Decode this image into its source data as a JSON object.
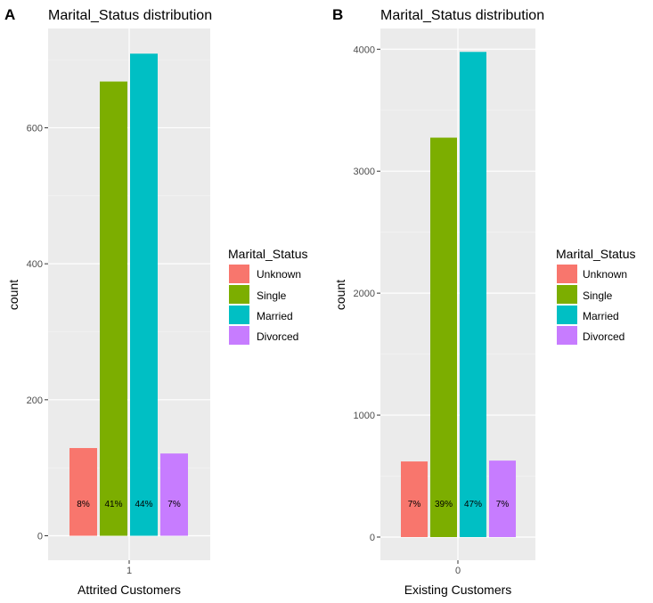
{
  "chart_data": [
    {
      "type": "bar",
      "panel_tag": "A",
      "title": "Marital_Status distribution",
      "xlabel": "Attrited Customers",
      "ylabel": "count",
      "x_tick": "1",
      "categories": [
        "Unknown",
        "Single",
        "Married",
        "Divorced"
      ],
      "values": [
        129,
        668,
        709,
        121
      ],
      "data_labels": [
        "8%",
        "41%",
        "44%",
        "7%"
      ],
      "yticks": [
        0,
        200,
        400,
        600
      ],
      "ytick_labels": [
        "0",
        "200",
        "400",
        "600"
      ],
      "ylim": [
        -36,
        746
      ],
      "grid": true,
      "legend": {
        "title": "Marital_Status",
        "position": "right",
        "entries": [
          "Unknown",
          "Single",
          "Married",
          "Divorced"
        ]
      }
    },
    {
      "type": "bar",
      "panel_tag": "B",
      "title": "Marital_Status distribution",
      "xlabel": "Existing Customers",
      "ylabel": "count",
      "x_tick": "0",
      "categories": [
        "Unknown",
        "Single",
        "Married",
        "Divorced"
      ],
      "values": [
        620,
        3275,
        3978,
        627
      ],
      "data_labels": [
        "7%",
        "39%",
        "47%",
        "7%"
      ],
      "yticks": [
        0,
        1000,
        2000,
        3000,
        4000
      ],
      "ytick_labels": [
        "0",
        "1000",
        "2000",
        "3000",
        "4000"
      ],
      "ylim": [
        -190,
        4170
      ],
      "grid": true,
      "legend": {
        "title": "Marital_Status",
        "position": "right",
        "entries": [
          "Unknown",
          "Single",
          "Married",
          "Divorced"
        ]
      }
    }
  ],
  "colors": {
    "Unknown": "#F8766D",
    "Single": "#7CAE00",
    "Married": "#00BFC4",
    "Divorced": "#C77CFF",
    "panel_background": "#EBEBEB",
    "grid_major": "#FFFFFF",
    "grid_minor": "#F5F5F5"
  }
}
